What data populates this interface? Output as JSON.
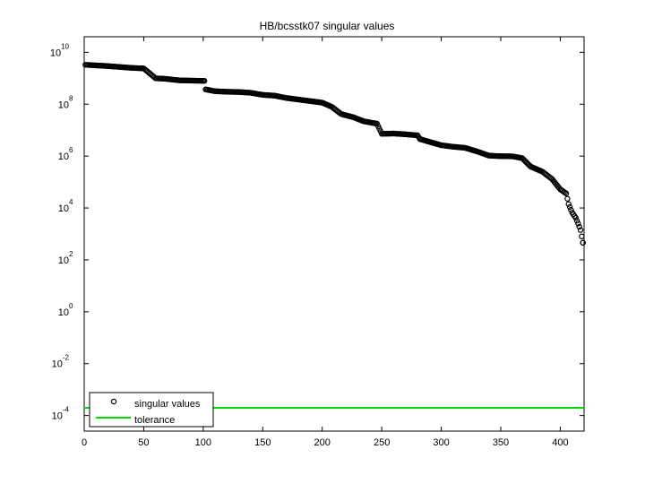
{
  "chart_data": {
    "type": "scatter",
    "title": "HB/bcsstk07 singular values",
    "xlabel": "",
    "ylabel": "",
    "xlim": [
      0,
      420
    ],
    "ylim_log10": [
      -4.6,
      10.6
    ],
    "y_scale": "log",
    "grid": false,
    "legend_position": "bottom-left",
    "x_ticks": [
      "0",
      "50",
      "100",
      "150",
      "200",
      "250",
      "300",
      "350",
      "400"
    ],
    "x_tick_values": [
      0,
      50,
      100,
      150,
      200,
      250,
      300,
      350,
      400
    ],
    "y_tick_values_log10": [
      -4,
      -2,
      0,
      2,
      4,
      6,
      8,
      10
    ],
    "y_tick_base": "10",
    "y_tick_exponents": [
      "-4",
      "-2",
      "0",
      "2",
      "4",
      "6",
      "8",
      "10"
    ],
    "series": [
      {
        "name": "singular values",
        "marker": "circle",
        "color": "#000000",
        "points_log10": [
          [
            1,
            9.52
          ],
          [
            20,
            9.47
          ],
          [
            40,
            9.4
          ],
          [
            50,
            9.38
          ],
          [
            60,
            9.0
          ],
          [
            68,
            8.98
          ],
          [
            80,
            8.92
          ],
          [
            101,
            8.9
          ],
          [
            101,
            8.58
          ],
          [
            110,
            8.5
          ],
          [
            120,
            8.48
          ],
          [
            130,
            8.47
          ],
          [
            140,
            8.44
          ],
          [
            150,
            8.36
          ],
          [
            160,
            8.33
          ],
          [
            170,
            8.24
          ],
          [
            180,
            8.18
          ],
          [
            190,
            8.12
          ],
          [
            200,
            8.06
          ],
          [
            208,
            7.9
          ],
          [
            216,
            7.62
          ],
          [
            226,
            7.5
          ],
          [
            235,
            7.34
          ],
          [
            246,
            7.25
          ],
          [
            250,
            6.86
          ],
          [
            260,
            6.87
          ],
          [
            270,
            6.84
          ],
          [
            280,
            6.8
          ],
          [
            282,
            6.66
          ],
          [
            290,
            6.55
          ],
          [
            300,
            6.42
          ],
          [
            310,
            6.36
          ],
          [
            320,
            6.32
          ],
          [
            330,
            6.18
          ],
          [
            340,
            6.02
          ],
          [
            348,
            6.0
          ],
          [
            360,
            5.99
          ],
          [
            368,
            5.92
          ],
          [
            375,
            5.6
          ],
          [
            385,
            5.4
          ],
          [
            393,
            5.12
          ],
          [
            400,
            4.72
          ],
          [
            405,
            4.56
          ],
          [
            407,
            4.15
          ],
          [
            410,
            3.82
          ],
          [
            413,
            3.62
          ],
          [
            415,
            3.4
          ],
          [
            417,
            3.15
          ],
          [
            419,
            2.66
          ]
        ]
      },
      {
        "name": "tolerance",
        "type": "line",
        "color": "#00dd00",
        "y_log10": -3.7
      }
    ]
  }
}
